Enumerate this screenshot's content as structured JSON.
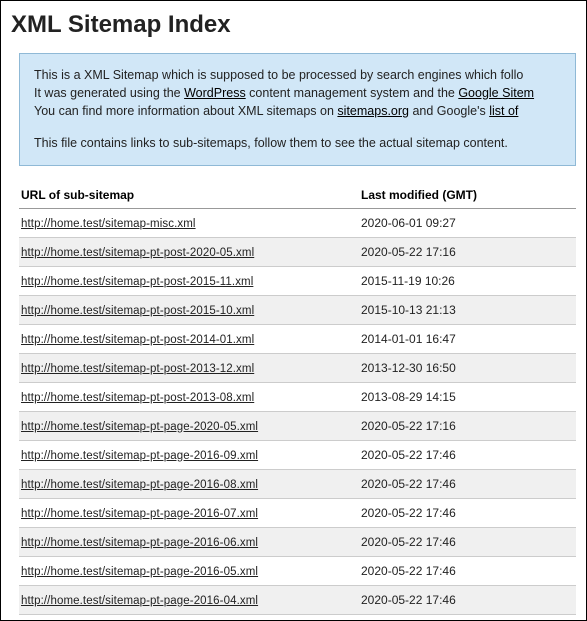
{
  "page": {
    "title": "XML Sitemap Index"
  },
  "notice": {
    "line1_pre": "This is a XML Sitemap which is supposed to be processed by search engines which follo",
    "line2_pre": "It was generated using the ",
    "line2_link1": "WordPress",
    "line2_mid": " content management system and the ",
    "line2_link2": "Google Sitem",
    "line3_pre": "You can find more information about XML sitemaps on ",
    "line3_link1": "sitemaps.org",
    "line3_mid": " and Google's ",
    "line3_link2": "list of",
    "line4": "This file contains links to sub-sitemaps, follow them to see the actual sitemap content."
  },
  "table": {
    "headers": {
      "url": "URL of sub-sitemap",
      "modified": "Last modified (GMT)"
    },
    "rows": [
      {
        "url": "http://home.test/sitemap-misc.xml",
        "modified": "2020-06-01 09:27"
      },
      {
        "url": "http://home.test/sitemap-pt-post-2020-05.xml",
        "modified": "2020-05-22 17:16"
      },
      {
        "url": "http://home.test/sitemap-pt-post-2015-11.xml",
        "modified": "2015-11-19 10:26"
      },
      {
        "url": "http://home.test/sitemap-pt-post-2015-10.xml",
        "modified": "2015-10-13 21:13"
      },
      {
        "url": "http://home.test/sitemap-pt-post-2014-01.xml",
        "modified": "2014-01-01 16:47"
      },
      {
        "url": "http://home.test/sitemap-pt-post-2013-12.xml",
        "modified": "2013-12-30 16:50"
      },
      {
        "url": "http://home.test/sitemap-pt-post-2013-08.xml",
        "modified": "2013-08-29 14:15"
      },
      {
        "url": "http://home.test/sitemap-pt-page-2020-05.xml",
        "modified": "2020-05-22 17:16"
      },
      {
        "url": "http://home.test/sitemap-pt-page-2016-09.xml",
        "modified": "2020-05-22 17:46"
      },
      {
        "url": "http://home.test/sitemap-pt-page-2016-08.xml",
        "modified": "2020-05-22 17:46"
      },
      {
        "url": "http://home.test/sitemap-pt-page-2016-07.xml",
        "modified": "2020-05-22 17:46"
      },
      {
        "url": "http://home.test/sitemap-pt-page-2016-06.xml",
        "modified": "2020-05-22 17:46"
      },
      {
        "url": "http://home.test/sitemap-pt-page-2016-05.xml",
        "modified": "2020-05-22 17:46"
      },
      {
        "url": "http://home.test/sitemap-pt-page-2016-04.xml",
        "modified": "2020-05-22 17:46"
      }
    ]
  }
}
